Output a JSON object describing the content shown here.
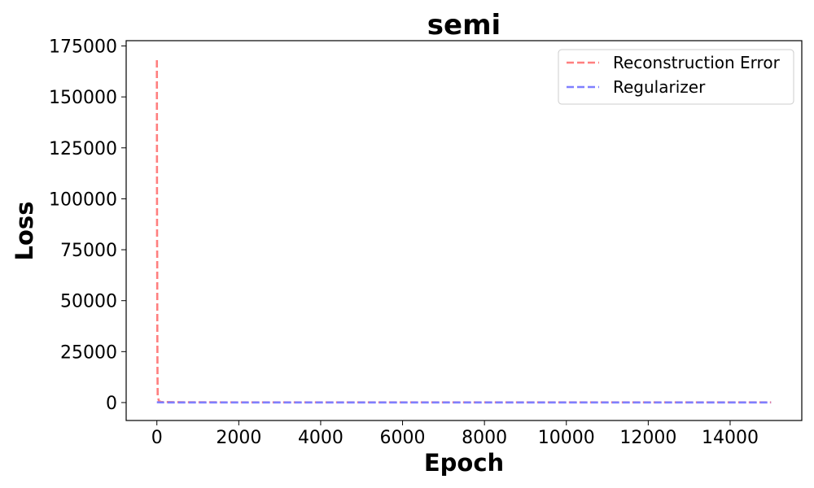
{
  "chart_data": {
    "type": "line",
    "title": "semi",
    "xlabel": "Epoch",
    "ylabel": "Loss",
    "xlim": [
      -750,
      15750
    ],
    "ylim": [
      -8800,
      177600
    ],
    "xticks": [
      0,
      2000,
      4000,
      6000,
      8000,
      10000,
      12000,
      14000
    ],
    "yticks": [
      0,
      25000,
      50000,
      75000,
      100000,
      125000,
      150000,
      175000
    ],
    "grid": false,
    "legend_position": "top-right",
    "series": [
      {
        "name": "Reconstruction Error",
        "color": "#ff7f7f",
        "line_style": "dashed",
        "x": [
          0,
          1,
          2,
          3,
          5,
          8,
          10,
          15,
          20,
          50,
          100,
          500,
          1000,
          2000,
          5000,
          10000,
          14999
        ],
        "y": [
          168000,
          140000,
          125000,
          105000,
          80000,
          72000,
          40000,
          15000,
          3000,
          800,
          300,
          200,
          150,
          120,
          100,
          100,
          100
        ]
      },
      {
        "name": "Regularizer",
        "color": "#7f7fff",
        "line_style": "dashed",
        "x": [
          0,
          100,
          1000,
          5000,
          10000,
          14999
        ],
        "y": [
          150,
          80,
          50,
          40,
          40,
          40
        ]
      }
    ]
  }
}
